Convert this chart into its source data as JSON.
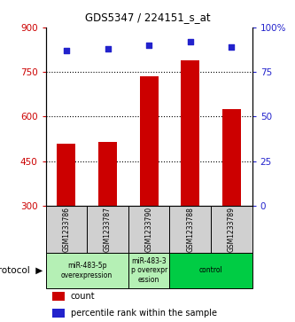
{
  "title": "GDS5347 / 224151_s_at",
  "samples": [
    "GSM1233786",
    "GSM1233787",
    "GSM1233790",
    "GSM1233788",
    "GSM1233789"
  ],
  "counts": [
    510,
    515,
    735,
    790,
    625
  ],
  "percentiles": [
    87,
    88,
    90,
    92,
    89
  ],
  "ylim_left": [
    300,
    900
  ],
  "ylim_right": [
    0,
    100
  ],
  "yticks_left": [
    300,
    450,
    600,
    750,
    900
  ],
  "yticks_right": [
    0,
    25,
    50,
    75,
    100
  ],
  "ytick_labels_right": [
    "0",
    "25",
    "50",
    "75",
    "100%"
  ],
  "bar_color": "#cc0000",
  "scatter_color": "#2222cc",
  "bg_color": "#ffffff",
  "group_ranges": [
    {
      "start": 0,
      "end": 1,
      "label": "miR-483-5p\noverexpression",
      "color": "#b5f0b5"
    },
    {
      "start": 2,
      "end": 2,
      "label": "miR-483-3\np overexpr\nession",
      "color": "#b5f0b5"
    },
    {
      "start": 3,
      "end": 4,
      "label": "control",
      "color": "#00cc44"
    }
  ],
  "legend_count_label": "count",
  "legend_pct_label": "percentile rank within the sample",
  "protocol_label": "protocol",
  "left_axis_color": "#cc0000",
  "right_axis_color": "#2222cc",
  "gray_cell_color": "#d0d0d0"
}
